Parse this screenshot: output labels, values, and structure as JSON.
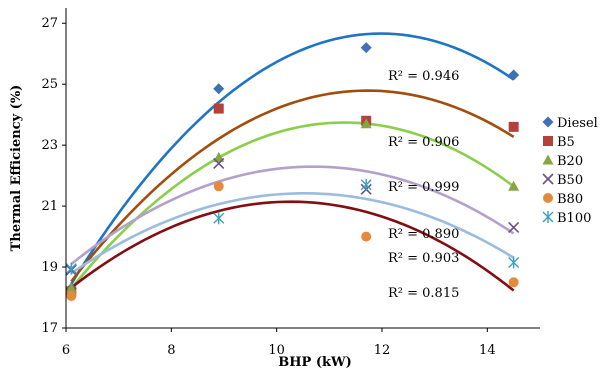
{
  "chart_data": {
    "type": "scatter",
    "xlabel": "BHP (kW)",
    "ylabel": "Thermal Efficiency (%)",
    "xlim": [
      6,
      15
    ],
    "ylim": [
      17,
      27.5
    ],
    "x_ticks": [
      "6",
      "8",
      "10",
      "12",
      "14"
    ],
    "y_ticks": [
      "17",
      "19",
      "21",
      "23",
      "25",
      "27"
    ],
    "legend_position": "right",
    "grid": false,
    "trendline": "quadratic",
    "series": [
      {
        "name": "Diesel",
        "marker": "diamond",
        "color": "#3f6fb6",
        "curve_color": "#1f74c4",
        "x": [
          6.1,
          8.9,
          11.7,
          14.5
        ],
        "y": [
          18.3,
          24.85,
          26.2,
          25.3
        ],
        "r2": "R² = 0.946"
      },
      {
        "name": "B5",
        "marker": "square",
        "color": "#b5403c",
        "curve_color": "#a24d0b",
        "x": [
          6.1,
          8.9,
          11.7,
          14.5
        ],
        "y": [
          18.2,
          24.2,
          23.8,
          23.6
        ],
        "r2": "R² = 0.906"
      },
      {
        "name": "B20",
        "marker": "triangle",
        "color": "#86a543",
        "curve_color": "#88cf4a",
        "x": [
          6.1,
          8.9,
          11.7,
          14.5
        ],
        "y": [
          18.3,
          22.6,
          23.7,
          21.65
        ],
        "r2": "R² = 0.999"
      },
      {
        "name": "B50",
        "marker": "x",
        "color": "#6b4f8c",
        "curve_color": "#b4a0cc",
        "x": [
          6.1,
          8.9,
          11.7,
          14.5
        ],
        "y": [
          18.9,
          22.4,
          21.55,
          20.3
        ],
        "r2": "R² = 0.890"
      },
      {
        "name": "B80",
        "marker": "circle",
        "color": "#e58a3a",
        "curve_color": "#820d12",
        "x": [
          6.1,
          8.9,
          11.7,
          14.5
        ],
        "y": [
          18.05,
          21.65,
          20.0,
          18.5
        ],
        "r2": "R² = 0.903"
      },
      {
        "name": "B100",
        "marker": "asterisk",
        "color": "#3a9fc3",
        "curve_color": "#9bbcde",
        "x": [
          6.1,
          8.9,
          11.7,
          14.5
        ],
        "y": [
          18.95,
          20.6,
          21.7,
          19.15
        ],
        "r2": "R² = 0.815"
      }
    ]
  }
}
